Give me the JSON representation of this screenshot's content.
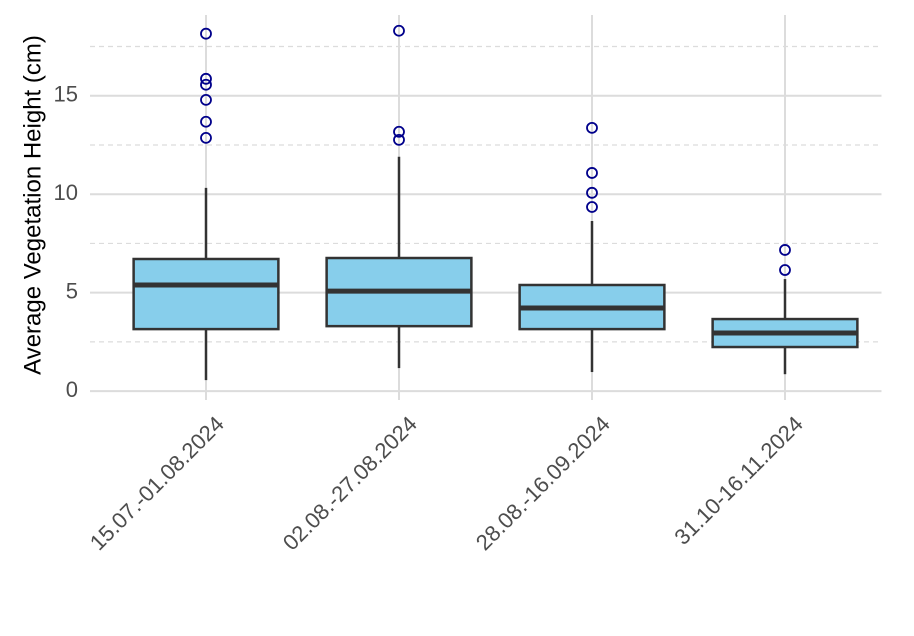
{
  "chart_data": {
    "type": "box",
    "y_label": "Average Vegetation Height (cm)",
    "categories": [
      "15.07.-01.08.2024",
      "02.08.-27.08.2024",
      "28.08.-16.09.2024",
      "31.10-16.11.2024"
    ],
    "boxes": [
      {
        "whisker_low": 0.56,
        "q1": 3.15,
        "median": 5.39,
        "q3": 6.71,
        "whisker_high": 10.32,
        "outliers": [
          18.15,
          15.86,
          15.56,
          14.79,
          13.68,
          12.86
        ]
      },
      {
        "whisker_low": 1.17,
        "q1": 3.3,
        "median": 5.08,
        "q3": 6.76,
        "whisker_high": 11.9,
        "outliers": [
          18.3,
          13.17,
          12.76
        ]
      },
      {
        "whisker_low": 0.97,
        "q1": 3.15,
        "median": 4.22,
        "q3": 5.39,
        "whisker_high": 8.64,
        "outliers": [
          13.37,
          11.08,
          10.07,
          9.35
        ]
      },
      {
        "whisker_low": 0.86,
        "q1": 2.24,
        "median": 2.95,
        "q3": 3.66,
        "whisker_high": 5.69,
        "outliers": [
          7.17,
          6.15
        ]
      }
    ],
    "color": "#87ceeb",
    "outlier_color": "#00008b",
    "ylim": [
      -0.45,
      19.1
    ],
    "yticks": [
      0,
      5,
      10,
      15
    ],
    "minor_yticks": [
      2.5,
      7.5,
      12.5,
      17.5
    ],
    "grid": true
  }
}
